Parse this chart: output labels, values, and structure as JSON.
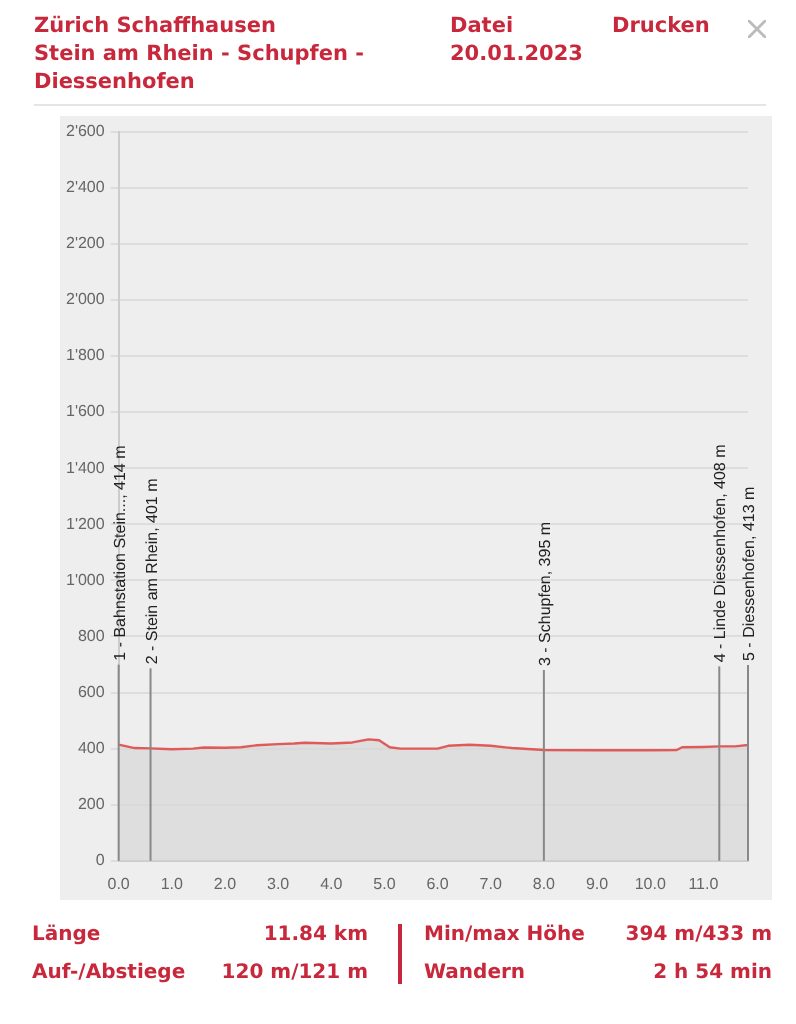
{
  "chart_data": {
    "type": "area",
    "title": "Zürich Schaffhausen",
    "subtitle": "Stein am Rhein - Schupfen - Diessenhofen",
    "annotations": [
      "Datei",
      "Drucken",
      "20.01.2023",
      "Länge",
      "11.84 km",
      "Auf-/Abstiege",
      "120 m/121 m",
      "Min/max Höhe",
      "394 m/433 m",
      "Wandern",
      "2 h 54 min"
    ],
    "x": [
      0,
      0.3,
      0.6,
      1.0,
      1.4,
      1.6,
      2.0,
      2.3,
      2.6,
      3.0,
      3.3,
      3.5,
      4.0,
      4.4,
      4.7,
      4.9,
      5.1,
      5.3,
      6.0,
      6.2,
      6.6,
      7.0,
      7.4,
      8.0,
      9.0,
      10.0,
      10.5,
      10.6,
      11.0,
      11.3,
      11.6,
      11.84
    ],
    "series": [
      {
        "color": "#e05a5a",
        "values": [
          414,
          402,
          401,
          398,
          400,
          404,
          403,
          405,
          412,
          416,
          418,
          421,
          418,
          422,
          433,
          430,
          405,
          400,
          400,
          410,
          414,
          410,
          402,
          395,
          394,
          394,
          395,
          405,
          406,
          408,
          408,
          413
        ]
      }
    ],
    "xlim": [
      0,
      11.84
    ],
    "xticks": [
      {
        "value": 0,
        "label": "0.0"
      },
      {
        "value": 1,
        "label": "1.0"
      },
      {
        "value": 2,
        "label": "2.0"
      },
      {
        "value": 3,
        "label": "3.0"
      },
      {
        "value": 4,
        "label": "4.0"
      },
      {
        "value": 5,
        "label": "5.0"
      },
      {
        "value": 6,
        "label": "6.0"
      },
      {
        "value": 7,
        "label": "7.0"
      },
      {
        "value": 8,
        "label": "8.0"
      },
      {
        "value": 9,
        "label": "9.0"
      },
      {
        "value": 10,
        "label": "10.0"
      },
      {
        "value": 11,
        "label": "11.0"
      }
    ],
    "ylim": [
      0,
      2600
    ],
    "yticks": [
      0,
      200,
      400,
      600,
      800,
      {
        "value": 1000,
        "label": "1'000"
      },
      {
        "value": 1200,
        "label": "1'200"
      },
      {
        "value": 1400,
        "label": "1'400"
      },
      {
        "value": 1600,
        "label": "1'600"
      },
      {
        "value": 1800,
        "label": "1'800"
      },
      {
        "value": 2000,
        "label": "2'000"
      },
      {
        "value": 2200,
        "label": "2'200"
      },
      {
        "value": 2400,
        "label": "2'400"
      },
      {
        "value": 2600,
        "label": "2'600"
      }
    ],
    "ref_lines": [
      {
        "axis": "x",
        "value": 0,
        "label": "1 - Bahnstation Stein..., 414 m",
        "color": "#888888"
      },
      {
        "axis": "x",
        "value": 0.6,
        "label": "2 - Stein am Rhein, 401 m",
        "color": "#888888"
      },
      {
        "axis": "x",
        "value": 8.0,
        "label": "3 - Schupfen, 395 m",
        "color": "#888888"
      },
      {
        "axis": "x",
        "value": 11.3,
        "label": "4 - Linde Diessenhofen, 408 m",
        "color": "#888888"
      },
      {
        "axis": "x",
        "value": 11.84,
        "label": "5 - Diessenhofen, 413 m",
        "color": "#888888"
      }
    ],
    "grid": "y",
    "legend": false,
    "marker": "none",
    "line_style": "solid"
  }
}
